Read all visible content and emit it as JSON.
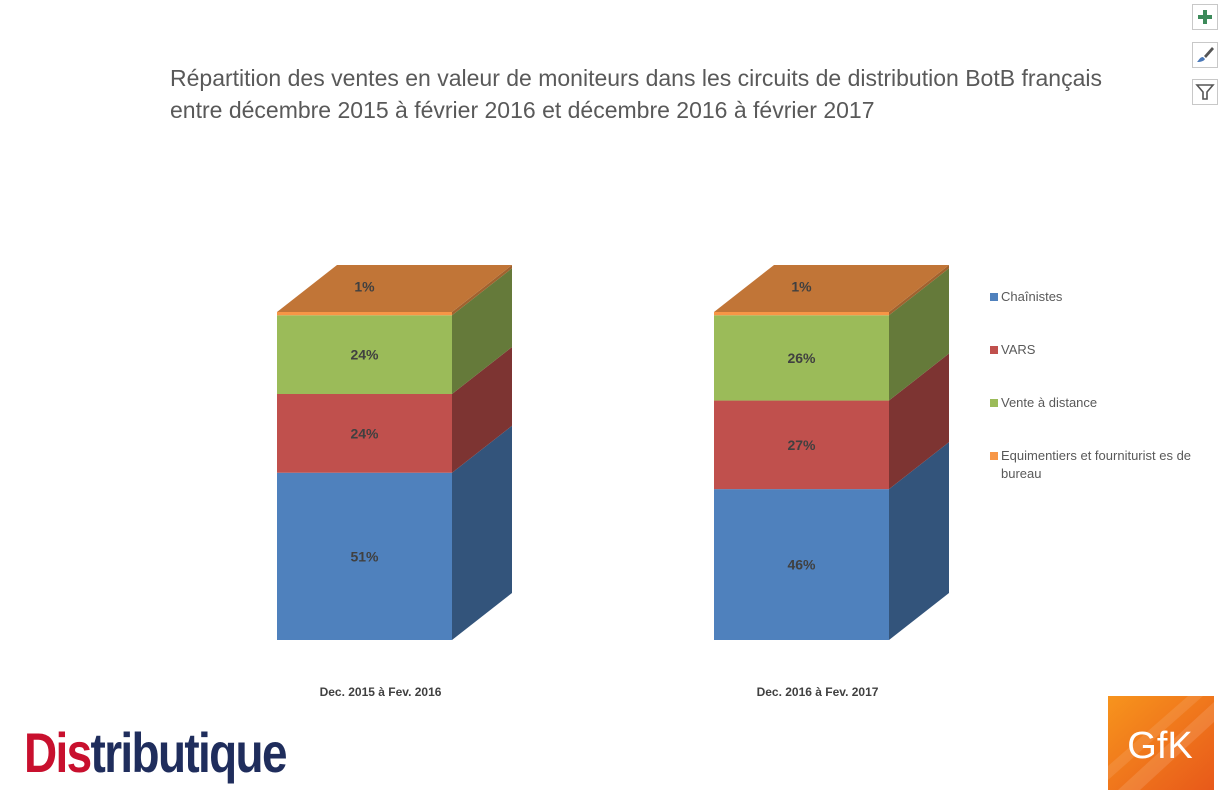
{
  "chart_data": {
    "type": "bar",
    "stacked": true,
    "title": "Répartition des ventes en valeur de moniteurs dans les circuits de distribution BotB français entre décembre 2015 à février 2016 et décembre 2016 à février 2017",
    "categories": [
      "Dec. 2015 à Fev. 2016",
      "Dec. 2016 à Fev. 2017"
    ],
    "series": [
      {
        "name": "Chaînistes",
        "values": [
          51,
          46
        ],
        "labels": [
          "51%",
          "46%"
        ],
        "color": "#4f81bd"
      },
      {
        "name": "VARS",
        "values": [
          24,
          27
        ],
        "labels": [
          "24%",
          "27%"
        ],
        "color": "#c0504d"
      },
      {
        "name": "Vente à distance",
        "values": [
          24,
          26
        ],
        "labels": [
          "24%",
          "26%"
        ],
        "color": "#9bbb59"
      },
      {
        "name": "Equimentiers et fourniturist es de bureau",
        "values": [
          1,
          1
        ],
        "labels": [
          "1%",
          "1%"
        ],
        "color": "#f79646"
      }
    ],
    "legend_position": "right",
    "ylim": [
      0,
      100
    ],
    "grid": false
  },
  "legend_lines": [
    [
      "Chaînistes"
    ],
    [
      "VARS"
    ],
    [
      "Vente à distance"
    ],
    [
      "Equimentiers et fourniturist es de",
      "bureau"
    ]
  ],
  "logos": {
    "distributique": {
      "red": "Dis",
      "navy": "tributique"
    },
    "gfk": "GfK"
  },
  "toolbar": {
    "add_icon": "plus-icon",
    "style_icon": "brush-icon",
    "filter_icon": "filter-icon"
  }
}
